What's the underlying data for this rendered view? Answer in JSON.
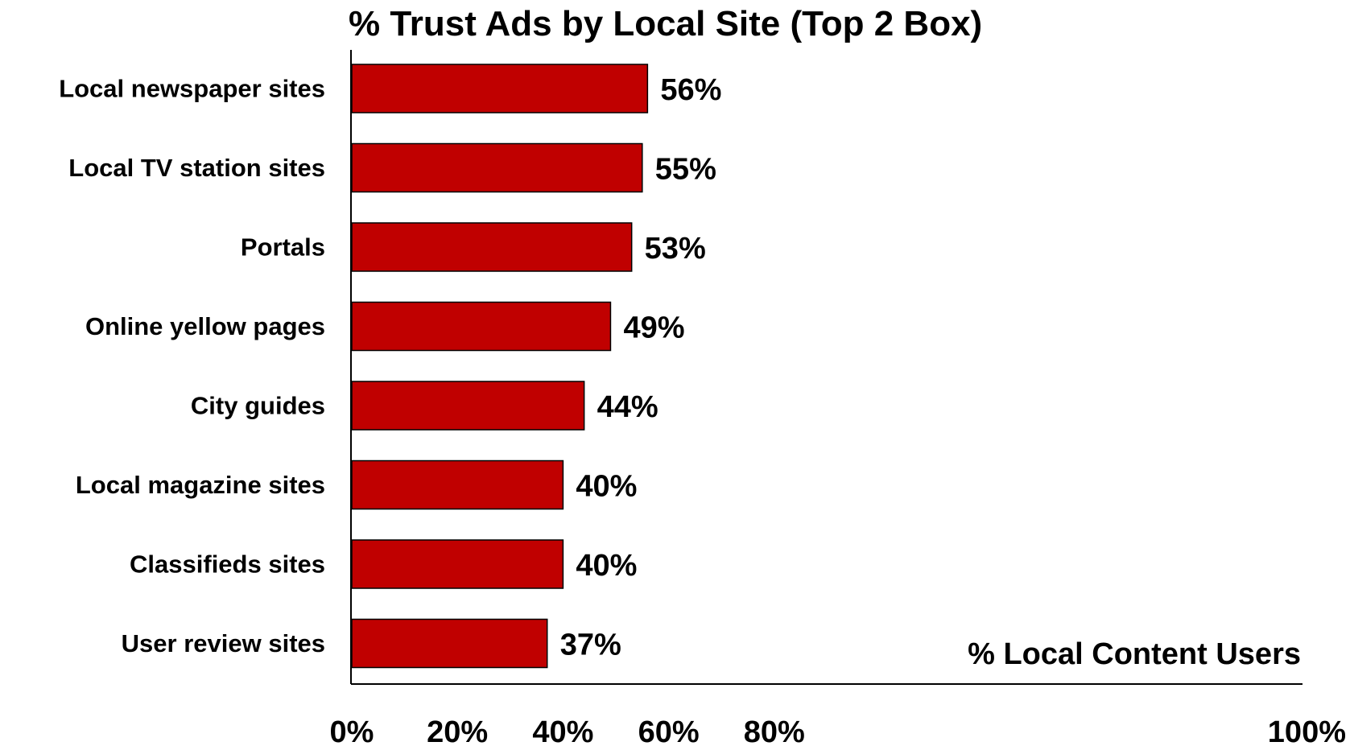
{
  "chart_data": {
    "type": "bar",
    "orientation": "horizontal",
    "title": "% Trust Ads by Local Site (Top 2 Box)",
    "categories": [
      "Local newspaper sites",
      "Local TV station sites",
      "Portals",
      "Online yellow pages",
      "City guides",
      "Local magazine sites",
      "Classifieds sites",
      "User review sites"
    ],
    "values": [
      56,
      55,
      53,
      49,
      44,
      40,
      40,
      37
    ],
    "value_labels": [
      "56%",
      "55%",
      "53%",
      "49%",
      "44%",
      "40%",
      "40%",
      "37%"
    ],
    "xlabel": "% Local Content Users",
    "ylabel": "",
    "xlim": [
      0,
      100
    ],
    "x_ticks": [
      0,
      20,
      40,
      60,
      80,
      100
    ],
    "x_tick_labels": [
      "0%",
      "20%",
      "40%",
      "60%",
      "80%",
      "100%"
    ],
    "grid": false,
    "legend": "none",
    "colors": {
      "bar_fill": "#C00000",
      "bar_stroke": "#000000",
      "axis": "#000000",
      "text": "#000000"
    }
  }
}
